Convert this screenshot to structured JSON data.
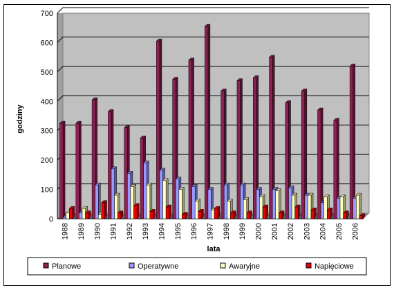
{
  "chart_data": {
    "type": "bar",
    "subtype": "3d-clustered-column",
    "xlabel": "lata",
    "ylabel": "godziny",
    "ylim": [
      0,
      700
    ],
    "ytick_step": 100,
    "yticks": [
      "0",
      "100",
      "200",
      "300",
      "400",
      "500",
      "600",
      "700"
    ],
    "grid": true,
    "legend_position": "bottom",
    "categories": [
      "1988",
      "1989",
      "1990",
      "1991",
      "1992",
      "1993",
      "1994",
      "1995",
      "1996",
      "1997",
      "1998",
      "1999",
      "2000",
      "2001",
      "2002",
      "2003",
      "2004",
      "2005",
      "2006"
    ],
    "series": [
      {
        "name": "Planowe",
        "color": "#8B2252",
        "values": [
          325,
          325,
          405,
          365,
          310,
          275,
          605,
          475,
          540,
          655,
          435,
          470,
          480,
          550,
          395,
          435,
          370,
          335,
          520
        ]
      },
      {
        "name": "Operatywne",
        "color": "#9999FF",
        "values": [
          5,
          20,
          115,
          170,
          155,
          190,
          165,
          135,
          110,
          100,
          115,
          115,
          100,
          100,
          105,
          80,
          55,
          70,
          70
        ]
      },
      {
        "name": "Awaryjne",
        "color": "#FFFFC0",
        "values": [
          20,
          35,
          15,
          80,
          110,
          115,
          130,
          100,
          60,
          30,
          60,
          65,
          75,
          95,
          80,
          80,
          75,
          75,
          80
        ]
      },
      {
        "name": "Napięciowe",
        "color": "#E8000B",
        "values": [
          35,
          20,
          55,
          20,
          45,
          25,
          40,
          15,
          25,
          35,
          20,
          20,
          40,
          20,
          40,
          30,
          30,
          20,
          10
        ]
      }
    ]
  }
}
